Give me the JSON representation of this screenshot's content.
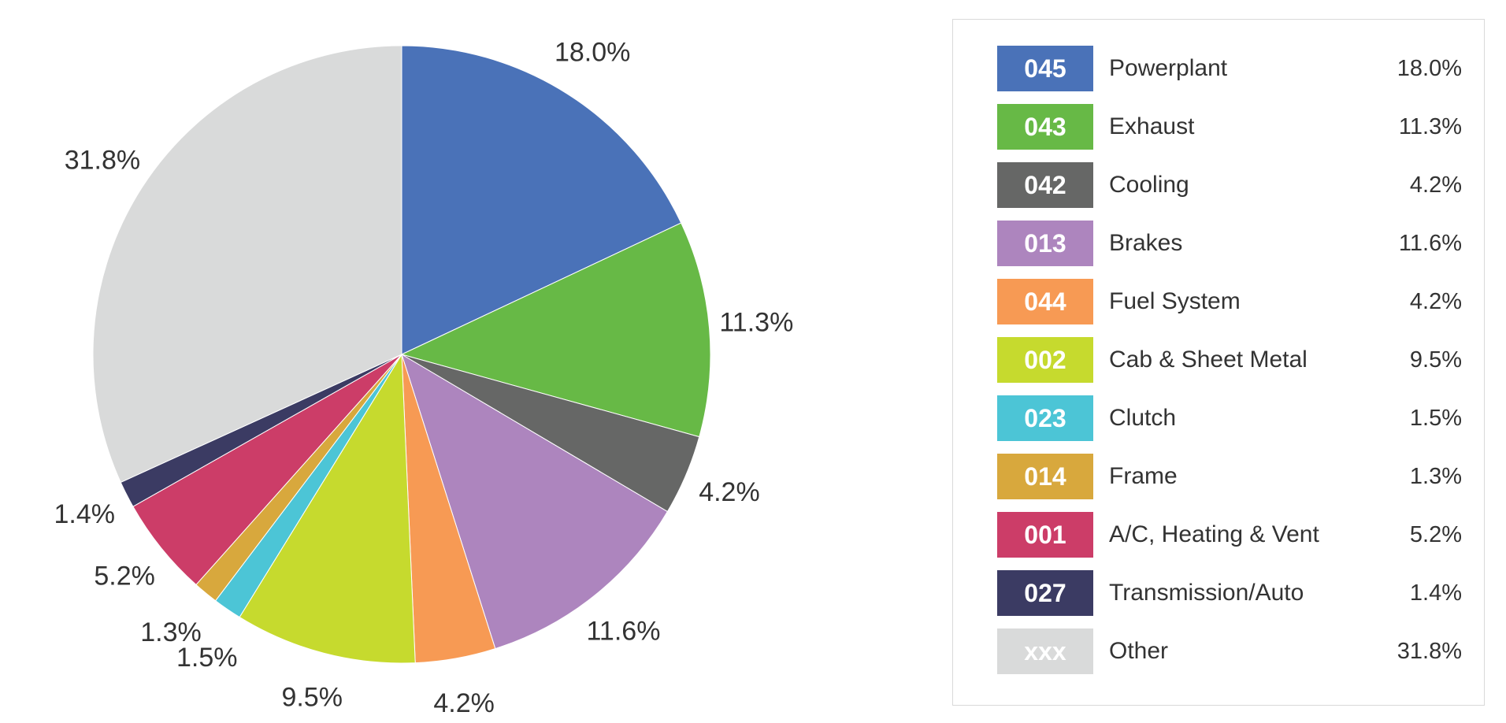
{
  "chart_data": {
    "type": "pie",
    "start_angle_deg": 0,
    "direction": "clockwise",
    "slices": [
      {
        "code": "045",
        "label": "Powerplant",
        "value": 18.0,
        "display": "18.0%",
        "color": "#4A72B8"
      },
      {
        "code": "043",
        "label": "Exhaust",
        "value": 11.3,
        "display": "11.3%",
        "color": "#67B946"
      },
      {
        "code": "042",
        "label": "Cooling",
        "value": 4.2,
        "display": "4.2%",
        "color": "#666766"
      },
      {
        "code": "013",
        "label": "Brakes",
        "value": 11.6,
        "display": "11.6%",
        "color": "#AD85BE"
      },
      {
        "code": "044",
        "label": "Fuel System",
        "value": 4.2,
        "display": "4.2%",
        "color": "#F79A54"
      },
      {
        "code": "002",
        "label": "Cab & Sheet Metal",
        "value": 9.5,
        "display": "9.5%",
        "color": "#C6DA2E"
      },
      {
        "code": "023",
        "label": "Clutch",
        "value": 1.5,
        "display": "1.5%",
        "color": "#4CC5D6"
      },
      {
        "code": "014",
        "label": "Frame",
        "value": 1.3,
        "display": "1.3%",
        "color": "#D8A83D"
      },
      {
        "code": "001",
        "label": "A/C, Heating & Vent",
        "value": 5.2,
        "display": "5.2%",
        "color": "#CC3D68"
      },
      {
        "code": "027",
        "label": "Transmission/Auto",
        "value": 1.4,
        "display": "1.4%",
        "color": "#3B3B63"
      },
      {
        "code": "xxx",
        "label": "Other",
        "value": 31.8,
        "display": "31.8%",
        "color": "#D9DADA"
      }
    ],
    "legend_position": "right"
  }
}
